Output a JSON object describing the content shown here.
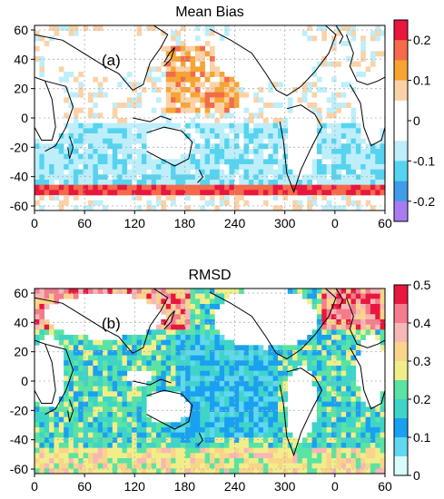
{
  "panels": [
    {
      "title": "Mean Bias",
      "label": "(a)",
      "colorbar": {
        "ticks": [
          "0.2",
          "0.1",
          "0",
          "-0.1",
          "-0.2"
        ],
        "colors": [
          "#e8173e",
          "#f46a4a",
          "#f6a533",
          "#fbd2a8",
          "#ffffff",
          "#ffffff",
          "#bdeefa",
          "#56d3ef",
          "#3f9dea",
          "#a87cf0"
        ]
      }
    },
    {
      "title": "RMSD",
      "label": "(b)",
      "colorbar": {
        "ticks": [
          "0.5",
          "0.4",
          "0.3",
          "0.2",
          "0.1",
          "0"
        ],
        "colors": [
          "#e8173e",
          "#f47c8d",
          "#f7b7b7",
          "#fad48a",
          "#f1ee8a",
          "#5ae3a2",
          "#3fd4c8",
          "#1aa0f0",
          "#5fd8f0",
          "#d8fbfb"
        ]
      }
    }
  ],
  "axes": {
    "y_ticks": [
      "60",
      "40",
      "20",
      "0",
      "-20",
      "-40",
      "-60"
    ],
    "x_ticks": [
      "0",
      "60",
      "120",
      "180",
      "240",
      "300",
      "0",
      "60"
    ]
  }
}
